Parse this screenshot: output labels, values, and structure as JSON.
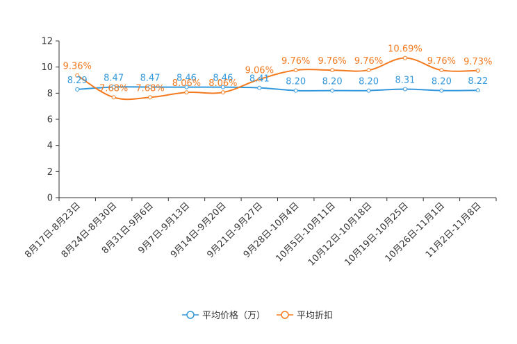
{
  "chart_data": {
    "type": "line",
    "categories": [
      "8月17日-8月23日",
      "8月24日-8月30日",
      "8月31日-9月6日",
      "9月7日-9月13日",
      "9月14日-9月20日",
      "9月21日-9月27日",
      "9月28日-10月4日",
      "10月5日-10月11日",
      "10月12日-10月18日",
      "10月19日-10月25日",
      "10月26日-11月1日",
      "11月2日-11月8日"
    ],
    "ylim": [
      0,
      12
    ],
    "yticks": [
      0,
      2,
      4,
      6,
      8,
      10,
      12
    ],
    "series": [
      {
        "name": "平均价格（万）",
        "color": "#3398db",
        "values": [
          8.29,
          8.47,
          8.47,
          8.46,
          8.46,
          8.41,
          8.2,
          8.2,
          8.2,
          8.31,
          8.2,
          8.22
        ],
        "labels": [
          "8.29",
          "8.47",
          "8.47",
          "8.46",
          "8.46",
          "8.41",
          "8.20",
          "8.20",
          "8.20",
          "8.31",
          "8.20",
          "8.22"
        ]
      },
      {
        "name": "平均折扣",
        "color": "#f47a20",
        "values": [
          9.36,
          7.68,
          7.68,
          8.06,
          8.06,
          9.06,
          9.76,
          9.76,
          9.76,
          10.69,
          9.76,
          9.73
        ],
        "labels": [
          "9.36%",
          "7.68%",
          "7.68%",
          "8.06%",
          "8.06%",
          "9.06%",
          "9.76%",
          "9.76%",
          "9.76%",
          "10.69%",
          "9.76%",
          "9.73%"
        ]
      }
    ]
  }
}
